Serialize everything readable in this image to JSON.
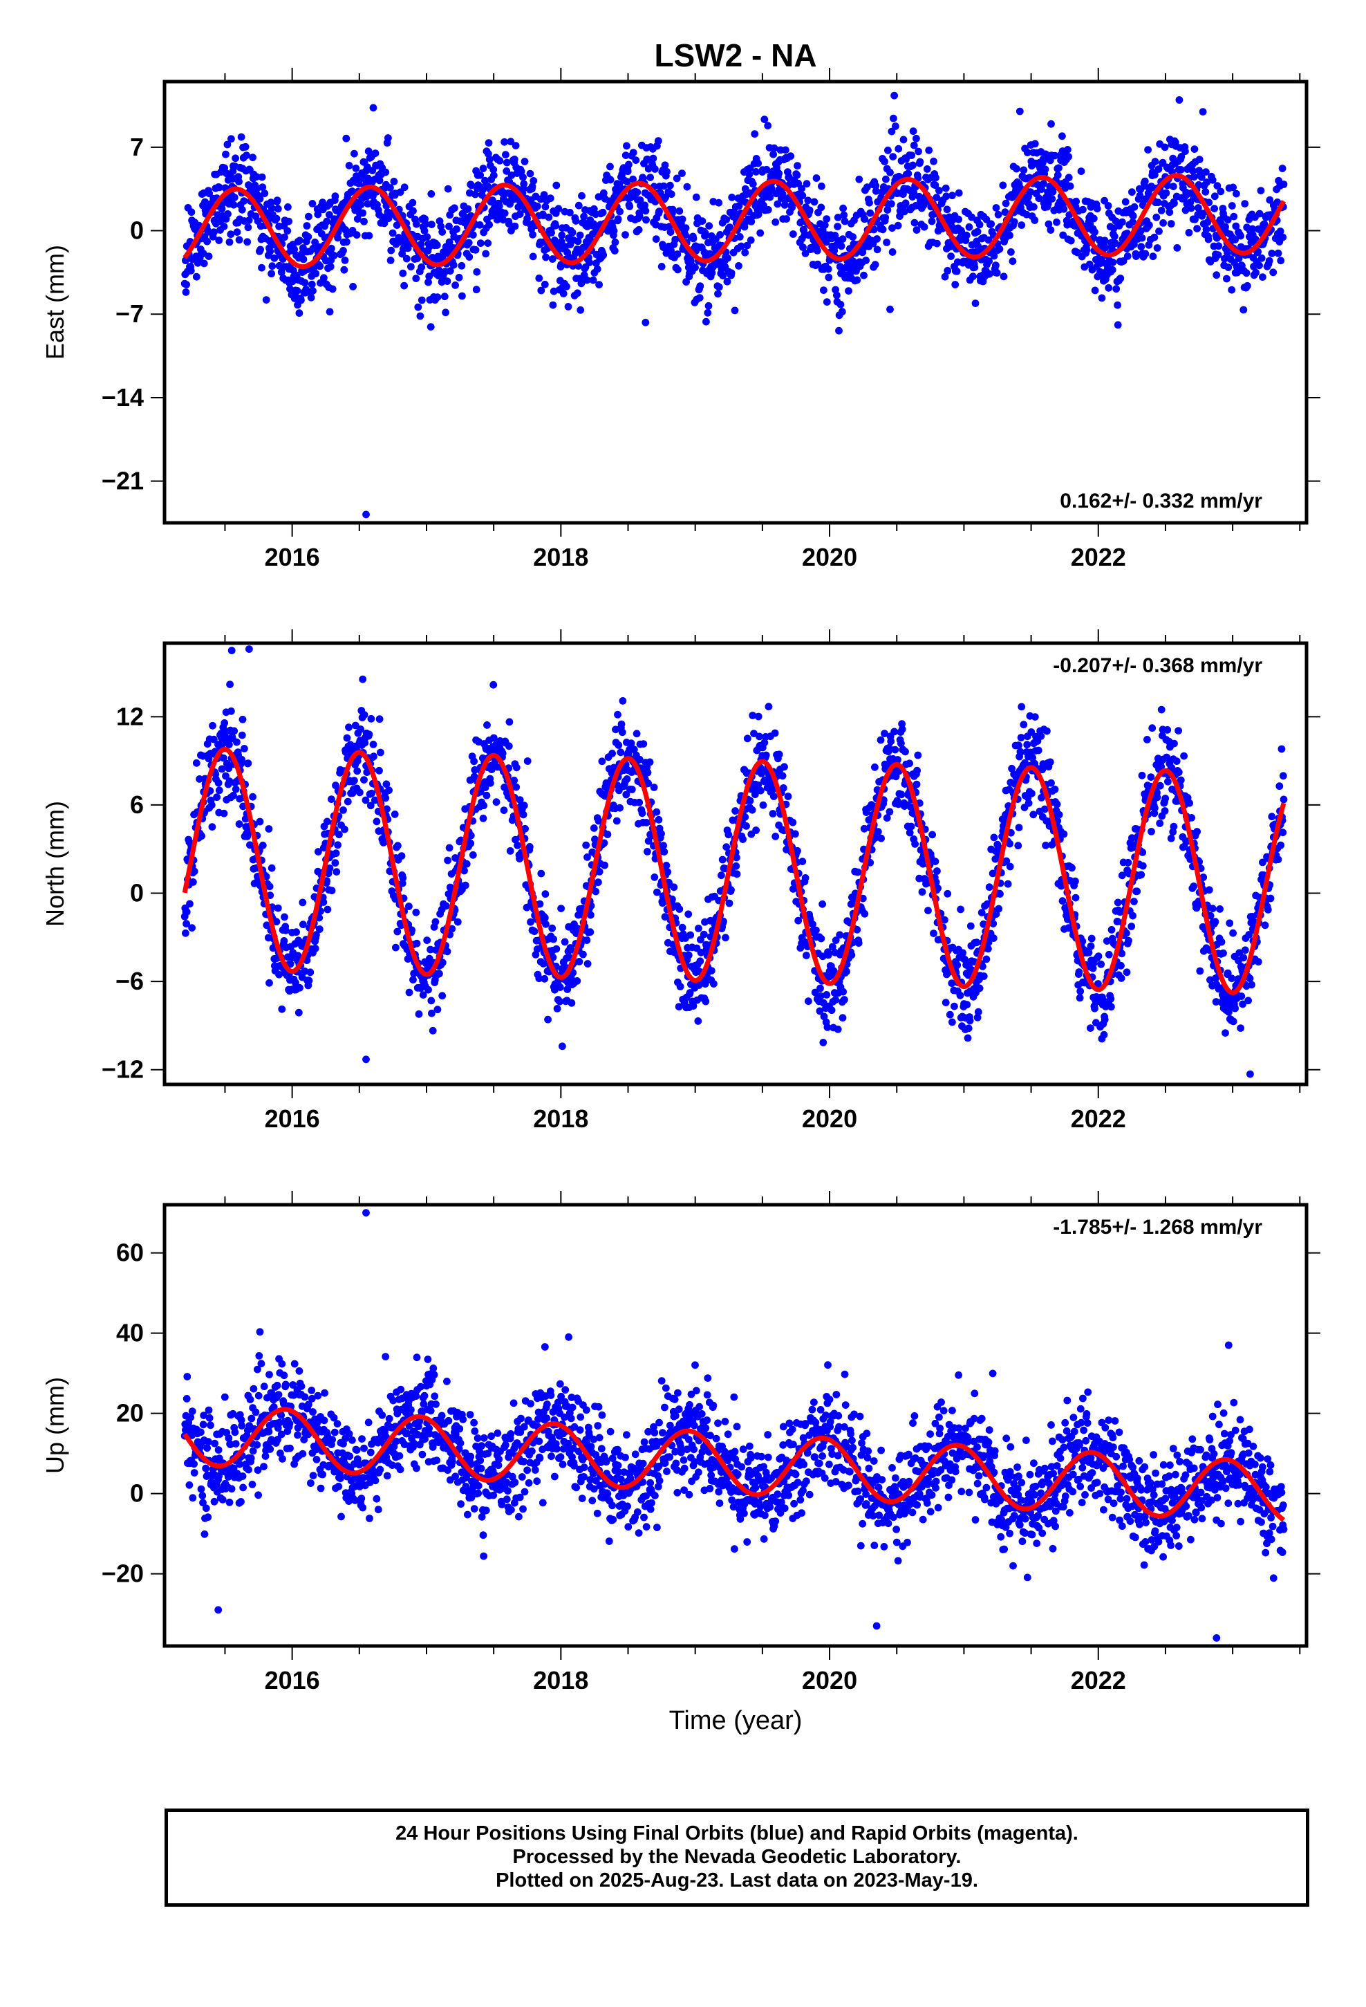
{
  "title": "LSW2 - NA",
  "xlabel": "Time (year)",
  "colors": {
    "points": "#0000ff",
    "fit": "#ff0000",
    "frame": "#000000"
  },
  "footer": {
    "line1": "24 Hour Positions Using Final Orbits (blue) and Rapid Orbits (magenta).",
    "line2": "Processed by the Nevada Geodetic Laboratory.",
    "line3": "Plotted on 2025-Aug-23. Last data on 2023-May-19."
  },
  "chart_data": [
    {
      "type": "scatter",
      "ylabel": "East (mm)",
      "rate_label": "0.162+/- 0.332 mm/yr",
      "rate_position": "bottom-right",
      "xlim": [
        2015.05,
        2023.55
      ],
      "ylim": [
        -24.5,
        12.5
      ],
      "x_ticks": [
        2016,
        2018,
        2020,
        2022
      ],
      "x_tick_labels": [
        "2016",
        "2018",
        "2020",
        "2022"
      ],
      "y_ticks": [
        7,
        0,
        -7,
        -14,
        -21
      ],
      "y_tick_labels": [
        "7",
        "0",
        "−7",
        "−14",
        "−21"
      ],
      "data_range": [
        2015.2,
        2023.38
      ],
      "fit": {
        "offset": 0.8,
        "trend_mm_per_yr": 0.162,
        "annual_amplitude": 3.3,
        "annual_peak": 0.58,
        "noise_sd": 2.0
      },
      "outliers": [
        {
          "x": 2016.55,
          "y": -23.8
        },
        {
          "x": 2018.63,
          "y": -7.7
        },
        {
          "x": 2016.28,
          "y": -6.8
        },
        {
          "x": 2020.45,
          "y": -6.6
        }
      ],
      "series": [
        {
          "name": "24 Hour Positions (Final Orbits)",
          "kind": "points"
        },
        {
          "name": "model fit",
          "kind": "line"
        }
      ]
    },
    {
      "type": "scatter",
      "ylabel": "North (mm)",
      "rate_label": "-0.207+/- 0.368 mm/yr",
      "rate_position": "top-right",
      "xlim": [
        2015.05,
        2023.55
      ],
      "ylim": [
        -13,
        17
      ],
      "x_ticks": [
        2016,
        2018,
        2020,
        2022
      ],
      "x_tick_labels": [
        "2016",
        "2018",
        "2020",
        "2022"
      ],
      "y_ticks": [
        12,
        6,
        0,
        -6,
        -12
      ],
      "y_tick_labels": [
        "12",
        "6",
        "0",
        "−6",
        "−12"
      ],
      "data_range": [
        2015.2,
        2023.38
      ],
      "fit": {
        "offset": 1.5,
        "trend_mm_per_yr": -0.207,
        "annual_amplitude": 7.5,
        "annual_peak": 0.5,
        "noise_sd": 1.7
      },
      "outliers": [
        {
          "x": 2015.55,
          "y": 16.5
        },
        {
          "x": 2015.68,
          "y": 16.6
        },
        {
          "x": 2016.55,
          "y": -11.3
        },
        {
          "x": 2023.13,
          "y": -12.3
        }
      ],
      "series": [
        {
          "name": "24 Hour Positions (Final Orbits)",
          "kind": "points"
        },
        {
          "name": "model fit",
          "kind": "line"
        }
      ]
    },
    {
      "type": "scatter",
      "ylabel": "Up (mm)",
      "rate_label": "-1.785+/- 1.268 mm/yr",
      "rate_position": "top-right",
      "xlim": [
        2015.05,
        2023.55
      ],
      "ylim": [
        -38,
        72
      ],
      "x_ticks": [
        2016,
        2018,
        2020,
        2022
      ],
      "x_tick_labels": [
        "2016",
        "2018",
        "2020",
        "2022"
      ],
      "y_ticks": [
        60,
        40,
        20,
        0,
        -20
      ],
      "y_tick_labels": [
        "60",
        "40",
        "20",
        "0",
        "−20"
      ],
      "data_range": [
        2015.2,
        2023.38
      ],
      "fit": {
        "offset": 7.5,
        "trend_mm_per_yr": -1.785,
        "annual_amplitude": 7.5,
        "annual_peak": 0.95,
        "noise_sd": 6.2
      },
      "outliers": [
        {
          "x": 2016.55,
          "y": 70
        },
        {
          "x": 2015.45,
          "y": -29
        },
        {
          "x": 2022.88,
          "y": -36
        },
        {
          "x": 2022.97,
          "y": 37
        },
        {
          "x": 2020.35,
          "y": -33
        }
      ],
      "series": [
        {
          "name": "24 Hour Positions (Final Orbits)",
          "kind": "points"
        },
        {
          "name": "model fit",
          "kind": "line"
        }
      ]
    }
  ]
}
